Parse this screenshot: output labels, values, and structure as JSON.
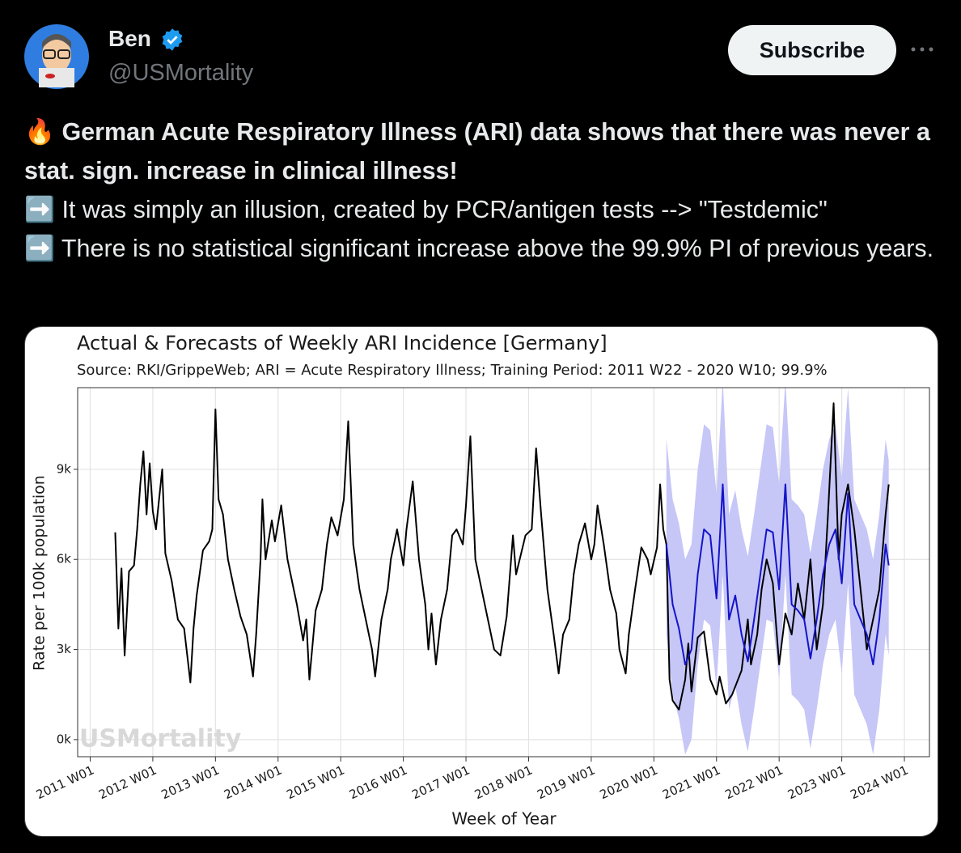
{
  "header": {
    "name": "Ben",
    "handle": "@USMortality",
    "subscribe": "Subscribe"
  },
  "post": {
    "headline": "🔥 German Acute Respiratory Illness (ARI) data shows that there was never a stat. sign. increase in clinical illness!",
    "points": [
      "➡️ It was simply an illusion, created by PCR/antigen tests --> \"Testdemic\"",
      "➡️ There is no statistical significant increase above the 99.9% PI of previous years."
    ]
  },
  "chart_data": {
    "type": "line",
    "title": "Actual & Forecasts of Weekly ARI Incidence [Germany]",
    "subtitle": "Source: RKI/GrippeWeb; ARI = Acute Respiratory Illness; Training Period: 2011 W22 - 2020 W10; 99.9%",
    "x_label": "Week of Year",
    "y_label": "Rate per 100k population",
    "watermark": "USMortality",
    "grid": true,
    "xlim": [
      2010.8,
      2024.4
    ],
    "xticks": [
      {
        "value": 2011,
        "label": "2011 W01"
      },
      {
        "value": 2012,
        "label": "2012 W01"
      },
      {
        "value": 2013,
        "label": "2013 W01"
      },
      {
        "value": 2014,
        "label": "2014 W01"
      },
      {
        "value": 2015,
        "label": "2015 W01"
      },
      {
        "value": 2016,
        "label": "2016 W01"
      },
      {
        "value": 2017,
        "label": "2017 W01"
      },
      {
        "value": 2018,
        "label": "2018 W01"
      },
      {
        "value": 2019,
        "label": "2019 W01"
      },
      {
        "value": 2020,
        "label": "2020 W01"
      },
      {
        "value": 2021,
        "label": "2021 W01"
      },
      {
        "value": 2022,
        "label": "2022 W01"
      },
      {
        "value": 2023,
        "label": "2023 W01"
      },
      {
        "value": 2024,
        "label": "2024 W01"
      }
    ],
    "ylim": [
      -570,
      11720
    ],
    "yticks": [
      {
        "value": 0,
        "label": "0k"
      },
      {
        "value": 3000,
        "label": "3k"
      },
      {
        "value": 6000,
        "label": "6k"
      },
      {
        "value": 9000,
        "label": "9k"
      }
    ],
    "interval": {
      "color": "#c6c6f7",
      "x": [
        2020.2,
        2020.3,
        2020.4,
        2020.5,
        2020.6,
        2020.7,
        2020.8,
        2020.9,
        2021.0,
        2021.1,
        2021.2,
        2021.3,
        2021.4,
        2021.5,
        2021.6,
        2021.7,
        2021.8,
        2021.9,
        2022.0,
        2022.1,
        2022.2,
        2022.3,
        2022.4,
        2022.5,
        2022.6,
        2022.7,
        2022.8,
        2022.9,
        2023.0,
        2023.1,
        2023.2,
        2023.3,
        2023.4,
        2023.5,
        2023.6,
        2023.7,
        2023.75
      ],
      "lower": [
        3500,
        1500,
        700,
        -500,
        0,
        2500,
        4000,
        3800,
        1700,
        5500,
        1000,
        1800,
        500,
        -400,
        1000,
        2500,
        4000,
        3900,
        2000,
        5500,
        1500,
        1300,
        1000,
        -300,
        1000,
        2500,
        3500,
        4000,
        2200,
        5200,
        1500,
        1000,
        500,
        -500,
        1000,
        3500,
        2800
      ],
      "upper": [
        10000,
        8000,
        7200,
        6000,
        6500,
        9000,
        10500,
        10300,
        8200,
        12000,
        7500,
        8300,
        7000,
        6100,
        7500,
        9000,
        10500,
        10400,
        8500,
        12000,
        8000,
        7800,
        7500,
        6200,
        7500,
        9000,
        10000,
        10500,
        8700,
        11700,
        8000,
        7500,
        7000,
        6000,
        7500,
        10000,
        9300
      ]
    },
    "series": [
      {
        "color": "#000000",
        "x": [
          2011.4,
          2011.45,
          2011.5,
          2011.55,
          2011.62,
          2011.7,
          2011.75,
          2011.8,
          2011.85,
          2011.9,
          2011.95,
          2012.0,
          2012.05,
          2012.15,
          2012.2,
          2012.3,
          2012.4,
          2012.5,
          2012.6,
          2012.65,
          2012.7,
          2012.8,
          2012.9,
          2012.95,
          2013.0,
          2013.05,
          2013.12,
          2013.2,
          2013.3,
          2013.4,
          2013.5,
          2013.6,
          2013.65,
          2013.72,
          2013.75,
          2013.8,
          2013.9,
          2013.95,
          2014.05,
          2014.15,
          2014.3,
          2014.4,
          2014.45,
          2014.5,
          2014.6,
          2014.7,
          2014.78,
          2014.85,
          2014.95,
          2015.05,
          2015.12,
          2015.2,
          2015.3,
          2015.4,
          2015.5,
          2015.55,
          2015.65,
          2015.75,
          2015.8,
          2015.9,
          2016.0,
          2016.05,
          2016.15,
          2016.25,
          2016.35,
          2016.4,
          2016.45,
          2016.52,
          2016.6,
          2016.7,
          2016.78,
          2016.85,
          2016.95,
          2017.0,
          2017.07,
          2017.15,
          2017.25,
          2017.35,
          2017.45,
          2017.55,
          2017.65,
          2017.75,
          2017.8,
          2017.95,
          2018.05,
          2018.12,
          2018.2,
          2018.3,
          2018.4,
          2018.48,
          2018.55,
          2018.65,
          2018.72,
          2018.8,
          2018.9,
          2019.0,
          2019.05,
          2019.1,
          2019.2,
          2019.3,
          2019.4,
          2019.45,
          2019.55,
          2019.6,
          2019.7,
          2019.8,
          2019.9,
          2019.95,
          2020.05,
          2020.1,
          2020.15,
          2020.2,
          2020.25,
          2020.3,
          2020.4,
          2020.5,
          2020.55,
          2020.6,
          2020.7,
          2020.8,
          2020.9,
          2021.0,
          2021.05,
          2021.15,
          2021.25,
          2021.4,
          2021.5,
          2021.55,
          2021.65,
          2021.72,
          2021.8,
          2021.9,
          2022.0,
          2022.1,
          2022.2,
          2022.3,
          2022.4,
          2022.5,
          2022.55,
          2022.6,
          2022.7,
          2022.78,
          2022.87,
          2022.95,
          2023.0,
          2023.1,
          2023.2,
          2023.3,
          2023.4,
          2023.5,
          2023.6,
          2023.7,
          2023.75
        ],
        "values": [
          6900,
          3700,
          5700,
          2800,
          5600,
          5800,
          7000,
          8500,
          9600,
          7500,
          9200,
          7600,
          7000,
          9000,
          6200,
          5300,
          4000,
          3700,
          1900,
          3700,
          4800,
          6300,
          6600,
          7000,
          11000,
          8000,
          7500,
          6000,
          5000,
          4100,
          3500,
          2100,
          3500,
          6000,
          8000,
          6000,
          7300,
          6600,
          7800,
          6000,
          4500,
          3300,
          4000,
          2000,
          4300,
          5000,
          6500,
          7400,
          6800,
          8000,
          10600,
          6500,
          5000,
          4000,
          3000,
          2100,
          4000,
          5000,
          6000,
          7000,
          5800,
          7000,
          8600,
          6000,
          4500,
          3000,
          4200,
          2500,
          4000,
          5000,
          6800,
          7000,
          6500,
          7800,
          10100,
          6000,
          5000,
          4000,
          3000,
          2800,
          4100,
          6800,
          5500,
          6800,
          7000,
          9700,
          7500,
          5000,
          3500,
          2200,
          3500,
          4000,
          5500,
          6500,
          7200,
          6000,
          6500,
          7800,
          6500,
          5000,
          4200,
          3000,
          2200,
          3500,
          5000,
          6400,
          6000,
          5500,
          6400,
          8500,
          7000,
          6500,
          2000,
          1300,
          1000,
          2000,
          3200,
          1600,
          3400,
          3600,
          2000,
          1500,
          2100,
          1200,
          1500,
          2300,
          4000,
          2500,
          3500,
          5000,
          6000,
          5200,
          2500,
          4200,
          3500,
          5200,
          4000,
          6000,
          4500,
          3000,
          4500,
          7500,
          11200,
          6000,
          7500,
          8500,
          7000,
          5000,
          3000,
          4000,
          5000,
          7500,
          8500
        ]
      },
      {
        "color": "#1414c8",
        "x": [
          2020.2,
          2020.3,
          2020.4,
          2020.5,
          2020.6,
          2020.7,
          2020.8,
          2020.9,
          2021.0,
          2021.1,
          2021.2,
          2021.3,
          2021.4,
          2021.5,
          2021.6,
          2021.7,
          2021.8,
          2021.9,
          2022.0,
          2022.1,
          2022.2,
          2022.3,
          2022.4,
          2022.5,
          2022.6,
          2022.7,
          2022.8,
          2022.9,
          2023.0,
          2023.1,
          2023.2,
          2023.3,
          2023.4,
          2023.5,
          2023.6,
          2023.7,
          2023.75
        ],
        "values": [
          6500,
          4500,
          3700,
          2500,
          3000,
          5500,
          7000,
          6800,
          4700,
          8500,
          4000,
          4800,
          3500,
          2600,
          4000,
          5500,
          7000,
          6900,
          5000,
          8500,
          4500,
          4300,
          4000,
          2700,
          4000,
          5500,
          6500,
          7000,
          5200,
          8200,
          4500,
          4000,
          3500,
          2500,
          4000,
          6500,
          5800
        ]
      }
    ]
  }
}
